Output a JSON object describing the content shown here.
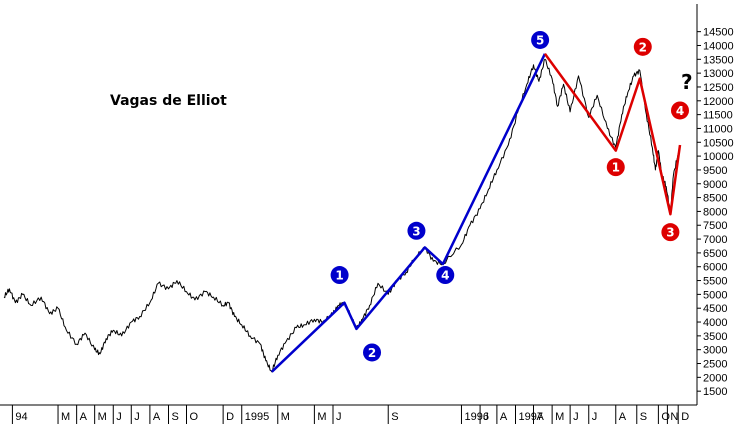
{
  "chart_data": {
    "type": "line",
    "title": "Vagas de Elliot",
    "ylim": [
      1000,
      15500
    ],
    "y_ticks": [
      1500,
      2000,
      2500,
      3000,
      3500,
      4000,
      4500,
      5000,
      5500,
      6000,
      6500,
      7000,
      7500,
      8000,
      8500,
      9000,
      9500,
      10000,
      10500,
      11000,
      11500,
      12000,
      12500,
      13000,
      13500,
      14000,
      14500
    ],
    "x_range": [
      "1994-12-01",
      "1997-12-31"
    ],
    "x_ticks": [
      {
        "label": "94",
        "date": "1994-12-15"
      },
      {
        "label": "M",
        "date": "1995-03-01"
      },
      {
        "label": "A",
        "date": "1995-04-01"
      },
      {
        "label": "M",
        "date": "1995-05-01"
      },
      {
        "label": "J",
        "date": "1995-06-01"
      },
      {
        "label": "J",
        "date": "1995-07-01"
      },
      {
        "label": "A",
        "date": "1995-08-01"
      },
      {
        "label": "S",
        "date": "1995-09-01"
      },
      {
        "label": "O",
        "date": "1995-10-01"
      },
      {
        "label": "D",
        "date": "1995-12-01"
      },
      {
        "label": "1995",
        "date": "1996-01-01"
      },
      {
        "label": "M",
        "date": "1996-03-01"
      },
      {
        "label": "M",
        "date": "1996-05-01"
      },
      {
        "label": "J",
        "date": "1996-06-01"
      },
      {
        "label": "S",
        "date": "1996-09-01"
      },
      {
        "label": "1996",
        "date": "1997-01-01"
      },
      {
        "label": "J",
        "date": "1997-02-01"
      },
      {
        "label": "A",
        "date": "1997-03-01"
      },
      {
        "label": "1997",
        "date": "1997-04-01"
      },
      {
        "label": "A",
        "date": "1997-05-01"
      },
      {
        "label": "M",
        "date": "1997-06-01"
      },
      {
        "label": "J",
        "date": "1997-07-01"
      },
      {
        "label": "J",
        "date": "1997-08-01"
      },
      {
        "label": "A",
        "date": "1997-09-15"
      },
      {
        "label": "S",
        "date": "1997-10-20"
      },
      {
        "label": "O",
        "date": "1997-11-25"
      },
      {
        "label": "N",
        "date": "1997-12-10"
      },
      {
        "label": "D",
        "date": "1997-12-28"
      }
    ],
    "series": [
      {
        "kind": "price",
        "color": "#000000",
        "points": [
          [
            "1994-12-01",
            4900
          ],
          [
            "1994-12-10",
            5200
          ],
          [
            "1994-12-20",
            4700
          ],
          [
            "1995-01-01",
            5000
          ],
          [
            "1995-01-15",
            4600
          ],
          [
            "1995-02-01",
            4900
          ],
          [
            "1995-02-15",
            4300
          ],
          [
            "1995-03-01",
            4500
          ],
          [
            "1995-03-15",
            3700
          ],
          [
            "1995-04-01",
            3200
          ],
          [
            "1995-04-15",
            3600
          ],
          [
            "1995-05-01",
            3000
          ],
          [
            "1995-05-10",
            2850
          ],
          [
            "1995-05-20",
            3400
          ],
          [
            "1995-06-01",
            3700
          ],
          [
            "1995-06-15",
            3500
          ],
          [
            "1995-07-01",
            4000
          ],
          [
            "1995-07-15",
            4200
          ],
          [
            "1995-08-01",
            4700
          ],
          [
            "1995-08-15",
            5400
          ],
          [
            "1995-09-01",
            5200
          ],
          [
            "1995-09-15",
            5500
          ],
          [
            "1995-10-01",
            5100
          ],
          [
            "1995-10-15",
            4800
          ],
          [
            "1995-11-01",
            5100
          ],
          [
            "1995-11-15",
            4900
          ],
          [
            "1995-12-01",
            4600
          ],
          [
            "1995-12-10",
            4700
          ],
          [
            "1995-12-20",
            4200
          ],
          [
            "1996-01-01",
            3900
          ],
          [
            "1996-01-15",
            3500
          ],
          [
            "1996-02-01",
            3200
          ],
          [
            "1996-02-10",
            2600
          ],
          [
            "1996-02-20",
            2200
          ],
          [
            "1996-03-01",
            2800
          ],
          [
            "1996-03-15",
            3300
          ],
          [
            "1996-04-01",
            3800
          ],
          [
            "1996-04-15",
            3900
          ],
          [
            "1996-05-01",
            4100
          ],
          [
            "1996-05-15",
            4000
          ],
          [
            "1996-06-01",
            4300
          ],
          [
            "1996-06-10",
            4600
          ],
          [
            "1996-06-20",
            4700
          ],
          [
            "1996-07-01",
            4200
          ],
          [
            "1996-07-10",
            3750
          ],
          [
            "1996-07-20",
            4100
          ],
          [
            "1996-08-01",
            4600
          ],
          [
            "1996-08-15",
            5400
          ],
          [
            "1996-09-01",
            5000
          ],
          [
            "1996-09-15",
            5500
          ],
          [
            "1996-10-01",
            5800
          ],
          [
            "1996-10-15",
            6300
          ],
          [
            "1996-11-01",
            6700
          ],
          [
            "1996-11-15",
            6200
          ],
          [
            "1996-12-01",
            6100
          ],
          [
            "1997-01-01",
            6800
          ],
          [
            "1997-01-15",
            7500
          ],
          [
            "1997-02-01",
            8100
          ],
          [
            "1997-02-15",
            8800
          ],
          [
            "1997-03-01",
            9500
          ],
          [
            "1997-03-20",
            10400
          ],
          [
            "1997-04-05",
            11600
          ],
          [
            "1997-04-20",
            12600
          ],
          [
            "1997-05-01",
            13300
          ],
          [
            "1997-05-10",
            12700
          ],
          [
            "1997-05-20",
            13500
          ],
          [
            "1997-06-01",
            12800
          ],
          [
            "1997-06-10",
            11800
          ],
          [
            "1997-06-20",
            12600
          ],
          [
            "1997-07-01",
            11600
          ],
          [
            "1997-07-15",
            12900
          ],
          [
            "1997-08-01",
            11400
          ],
          [
            "1997-08-15",
            12200
          ],
          [
            "1997-09-01",
            11000
          ],
          [
            "1997-09-15",
            10300
          ],
          [
            "1997-09-25",
            11500
          ],
          [
            "1997-10-05",
            12300
          ],
          [
            "1997-10-15",
            12900
          ],
          [
            "1997-10-25",
            13100
          ],
          [
            "1997-11-05",
            11500
          ],
          [
            "1997-11-15",
            10300
          ],
          [
            "1997-11-20",
            9500
          ],
          [
            "1997-11-25",
            10200
          ],
          [
            "1997-12-01",
            9300
          ],
          [
            "1997-12-08",
            8900
          ],
          [
            "1997-12-15",
            7950
          ],
          [
            "1997-12-20",
            9300
          ],
          [
            "1997-12-28",
            10100
          ]
        ]
      },
      {
        "kind": "wave",
        "color": "#0000cc",
        "points": [
          [
            "1996-02-20",
            2200
          ],
          [
            "1996-06-20",
            4700
          ],
          [
            "1996-07-10",
            3750
          ],
          [
            "1996-11-01",
            6700
          ],
          [
            "1996-12-01",
            6100
          ],
          [
            "1997-05-20",
            13700
          ]
        ]
      },
      {
        "kind": "wave",
        "color": "#dd0000",
        "points": [
          [
            "1997-05-20",
            13700
          ],
          [
            "1997-09-15",
            10200
          ],
          [
            "1997-10-25",
            12800
          ],
          [
            "1997-12-15",
            7900
          ],
          [
            "1997-12-31",
            10400
          ]
        ]
      }
    ],
    "annotations": [
      {
        "label": "1",
        "color": "#0000cc",
        "date": "1996-06-12",
        "value": 5700
      },
      {
        "label": "2",
        "color": "#0000cc",
        "date": "1996-08-05",
        "value": 2900
      },
      {
        "label": "3",
        "color": "#0000cc",
        "date": "1996-10-18",
        "value": 7300
      },
      {
        "label": "4",
        "color": "#0000cc",
        "date": "1996-12-05",
        "value": 5700
      },
      {
        "label": "5",
        "color": "#0000cc",
        "date": "1997-05-12",
        "value": 14200
      },
      {
        "label": "1",
        "color": "#dd0000",
        "date": "1997-09-15",
        "value": 9600
      },
      {
        "label": "2",
        "color": "#dd0000",
        "date": "1997-10-30",
        "value": 13950
      },
      {
        "label": "3",
        "color": "#dd0000",
        "date": "1997-12-15",
        "value": 7250
      },
      {
        "label": "4",
        "color": "#dd0000",
        "date": "1997-12-31",
        "value": 11650
      }
    ],
    "question_mark": "?"
  }
}
